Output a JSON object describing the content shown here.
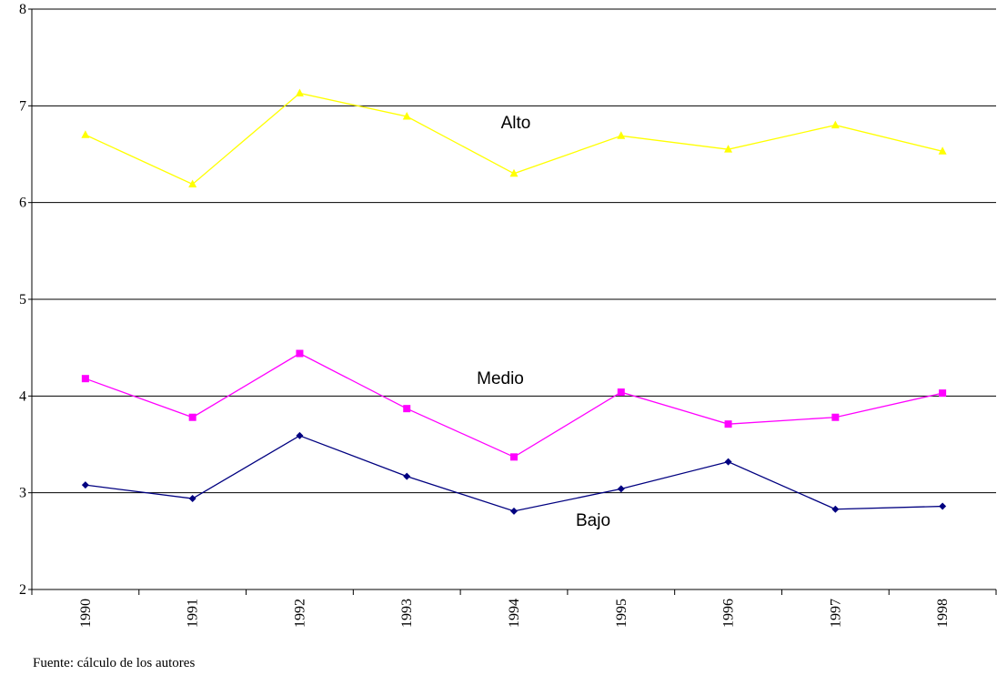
{
  "chart_data": {
    "type": "line",
    "categories": [
      "1990",
      "1991",
      "1992",
      "1993",
      "1994",
      "1995",
      "1996",
      "1997",
      "1998"
    ],
    "series": [
      {
        "name": "Alto",
        "color": "#ffff00",
        "marker": "triangle",
        "values": [
          6.7,
          6.19,
          7.13,
          6.89,
          6.3,
          6.69,
          6.55,
          6.8,
          6.53
        ]
      },
      {
        "name": "Medio",
        "color": "#ff00ff",
        "marker": "square",
        "values": [
          4.18,
          3.78,
          4.44,
          3.87,
          3.37,
          4.04,
          3.71,
          3.78,
          4.03
        ]
      },
      {
        "name": "Bajo",
        "color": "#000080",
        "marker": "diamond",
        "values": [
          3.08,
          2.94,
          3.59,
          3.17,
          2.81,
          3.04,
          3.32,
          2.83,
          2.86
        ]
      }
    ],
    "ylim": [
      2,
      8
    ],
    "yticks": [
      2,
      3,
      4,
      5,
      6,
      7,
      8
    ],
    "grid": true,
    "source": "Fuente:  cálculo de los autores"
  }
}
